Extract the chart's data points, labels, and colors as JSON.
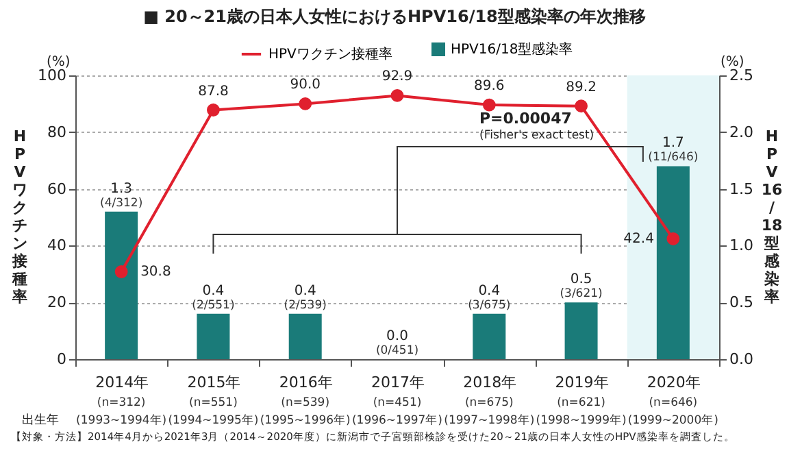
{
  "chart_data": {
    "type": "bar",
    "title": "■ 20～21歳の日本人女性におけるHPV16/18型感染率の年次推移",
    "categories": [
      "2014年",
      "2015年",
      "2016年",
      "2017年",
      "2018年",
      "2019年",
      "2020年"
    ],
    "series": [
      {
        "name": "HPV16/18型感染率",
        "axis": "y2",
        "color": "#1a7b79",
        "values": [
          1.3,
          0.4,
          0.4,
          0.0,
          0.4,
          0.5,
          1.7
        ],
        "value_labels": [
          "1.3",
          "0.4",
          "0.4",
          "0.0",
          "0.4",
          "0.5",
          "1.7"
        ]
      },
      {
        "name": "HPVワクチン接種率",
        "type": "line",
        "color": "#e0202e",
        "values": [
          30.8,
          87.8,
          90.0,
          92.9,
          89.6,
          89.2,
          42.4
        ],
        "value_labels": [
          "30.8",
          "87.8",
          "90.0",
          "92.9",
          "89.6",
          "89.2",
          "42.4"
        ]
      }
    ],
    "ylabel": "HPVワクチン接種率",
    "y2label": "HPV16/18型感染率",
    "ylim": [
      0,
      100
    ],
    "yticks": [
      0,
      20,
      40,
      60,
      80,
      100
    ],
    "y2lim": [
      0,
      2.5
    ],
    "y2ticks": [
      {
        "value": 0,
        "label": "0.0"
      },
      0.5,
      {
        "value": 1,
        "label": "1.0"
      },
      1.5,
      {
        "value": 2,
        "label": "2.0"
      },
      2.5
    ],
    "grid": "y",
    "legend": "top",
    "marker": "circle",
    "bands": [
      {
        "axis": "x",
        "from": "2020年",
        "to": "2020年",
        "color": "#e6f6f8"
      }
    ],
    "annotations": [
      "(4/312)",
      "(2/551)",
      "(2/539)",
      "(0/451)",
      "(3/675)",
      "(3/621)",
      "(11/646)",
      "(n=312)",
      "(n=551)",
      "(n=539)",
      "(n=451)",
      "(n=675)",
      "(n=621)",
      "(n=646)",
      "(1993~1994年)",
      "(1994~1995年)",
      "(1995~1996年)",
      "(1996~1997年)",
      "(1997~1998年)",
      "(1998~1999年)",
      "(1999~2000年)",
      "(%)",
      "(%)",
      "P=0.00047",
      "(Fisher's exact test)",
      "出生年",
      "【対象・方法】2014年4月から2021年3月（2014～2020年度）に新潟市で子宮頸部検診を受けた20～21歳の日本人女性のHPV感染率を調査した。"
    ]
  }
}
